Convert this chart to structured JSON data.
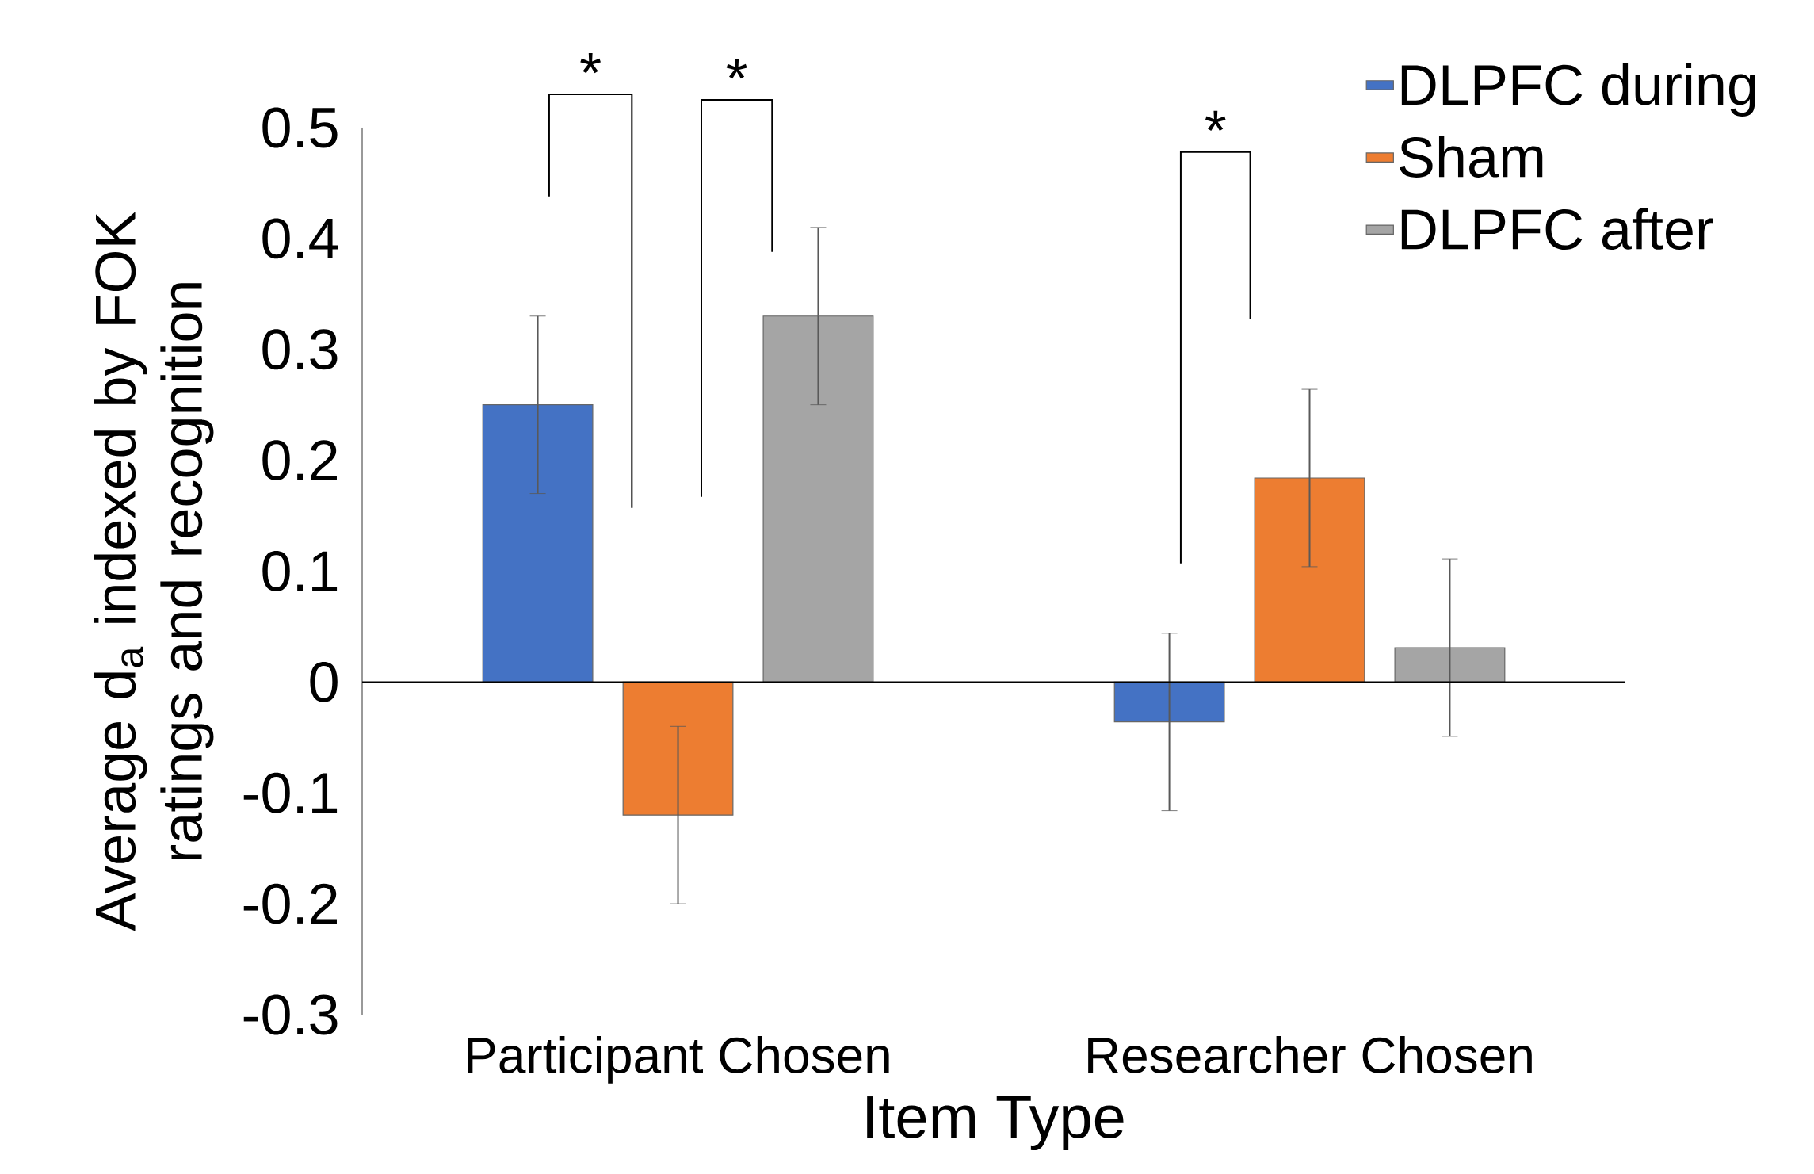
{
  "chart_data": {
    "type": "bar",
    "ylabel": "Average d$_{a}$ indexed by FOK ratings and recognition",
    "xlabel": "Item Type",
    "categories": [
      "Participant Chosen",
      "Researcher Chosen"
    ],
    "series": [
      {
        "name": "DLPFC during",
        "color": "#4472c4",
        "values": [
          0.25,
          -0.036
        ],
        "errors": [
          0.08,
          0.08
        ]
      },
      {
        "name": "Sham",
        "color": "#ed7d31",
        "values": [
          -0.12,
          0.184
        ],
        "errors": [
          0.08,
          0.08
        ]
      },
      {
        "name": "DLPFC after",
        "color": "#a5a5a5",
        "values": [
          0.33,
          0.031
        ],
        "errors": [
          0.08,
          0.08
        ]
      }
    ],
    "ylim": [
      -0.3,
      0.5
    ],
    "yticks": [
      -0.3,
      -0.2,
      -0.1,
      0,
      0.1,
      0.2,
      0.3,
      0.4,
      0.5
    ],
    "legend": "top right",
    "annotations": [
      "*",
      "*",
      "*"
    ]
  }
}
